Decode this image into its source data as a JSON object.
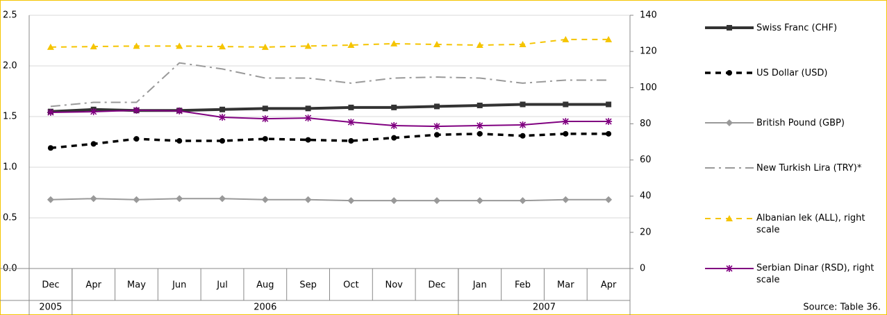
{
  "chart_data": {
    "type": "line",
    "categories": [
      "Dec",
      "Apr",
      "May",
      "Jun",
      "Jul",
      "Aug",
      "Sep",
      "Oct",
      "Nov",
      "Dec",
      "Jan",
      "Feb",
      "Mar",
      "Apr"
    ],
    "years": [
      {
        "label": "2005",
        "span": 1
      },
      {
        "label": "2006",
        "span": 9
      },
      {
        "label": "2007",
        "span": 4
      }
    ],
    "ylim": [
      0,
      2.5
    ],
    "yticks": [
      {
        "value": 0,
        "label": "0.0"
      },
      0.5,
      {
        "value": 1,
        "label": "1.0"
      },
      1.5,
      {
        "value": 2,
        "label": "2.0"
      },
      2.5
    ],
    "y2lim": [
      0,
      140
    ],
    "y2ticks": [
      0,
      20,
      40,
      60,
      80,
      100,
      120,
      140
    ],
    "series": [
      {
        "name": "Swiss Franc (CHF)",
        "color": "#333333",
        "marker": "square",
        "dash": "solid",
        "width": 4,
        "values": [
          1.55,
          1.57,
          1.56,
          1.56,
          1.57,
          1.58,
          1.58,
          1.59,
          1.59,
          1.6,
          1.61,
          1.62,
          1.62,
          1.62
        ]
      },
      {
        "name": "US Dollar (USD)",
        "color": "#000000",
        "marker": "circle",
        "dash": "dash",
        "width": 3.5,
        "values": [
          1.19,
          1.23,
          1.28,
          1.26,
          1.26,
          1.28,
          1.27,
          1.26,
          1.29,
          1.32,
          1.33,
          1.31,
          1.33,
          1.33
        ]
      },
      {
        "name": "British Pound  (GBP)",
        "color": "#999999",
        "marker": "diamond",
        "dash": "solid",
        "width": 2,
        "values": [
          0.68,
          0.69,
          0.68,
          0.69,
          0.69,
          0.68,
          0.68,
          0.67,
          0.67,
          0.67,
          0.67,
          0.67,
          0.68,
          0.68
        ]
      },
      {
        "name": "New Turkish Lira (TRY)*",
        "color": "#999999",
        "marker": "none",
        "dash": "dashdot",
        "width": 2,
        "values": [
          1.6,
          1.64,
          1.64,
          2.03,
          1.97,
          1.88,
          1.88,
          1.83,
          1.88,
          1.89,
          1.88,
          1.83,
          1.86,
          1.86
        ]
      },
      {
        "name": "Albanian lek (ALL), right scale",
        "color": "#f5c400",
        "marker": "triangle",
        "dash": "dash",
        "width": 2,
        "axis": "y2",
        "values": [
          122.4,
          122.7,
          123.0,
          123.0,
          122.7,
          122.4,
          123.0,
          123.5,
          124.3,
          123.9,
          123.5,
          123.9,
          126.6,
          126.6
        ]
      },
      {
        "name": "Serbian Dinar (RSD), right scale",
        "color": "#800080",
        "marker": "asterisk",
        "dash": "solid",
        "width": 2,
        "axis": "y2",
        "values": [
          86.3,
          86.7,
          87.5,
          87.1,
          83.6,
          82.8,
          83.2,
          80.9,
          79.0,
          78.6,
          79.0,
          79.4,
          81.3,
          81.3
        ]
      }
    ],
    "source": "Source: Table 36."
  }
}
